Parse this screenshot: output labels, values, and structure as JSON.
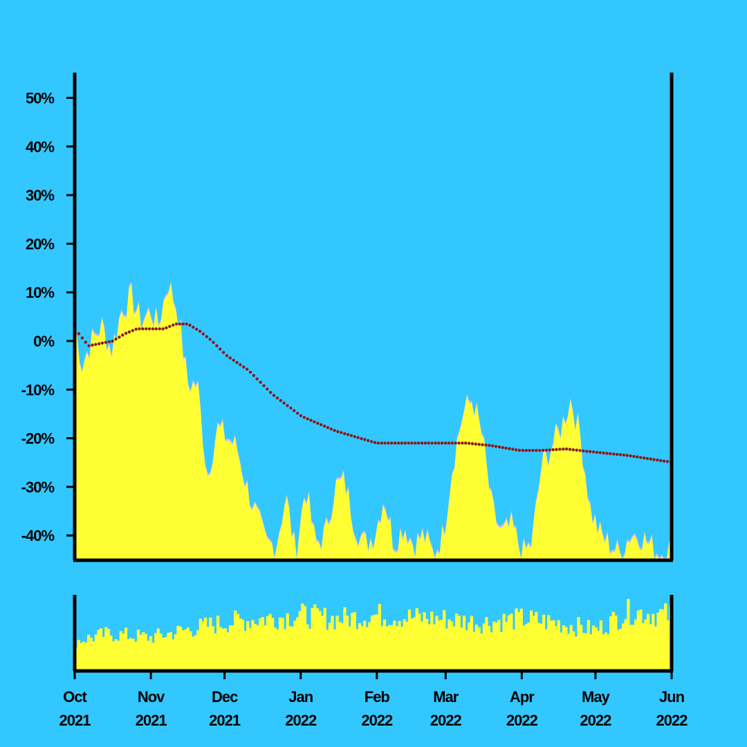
{
  "colors": {
    "background": "#33c7ff",
    "area_fill": "#ffff33",
    "area_edge": "#d8b8f0",
    "trend_dot": "#8b1a1a",
    "axis": "#000000"
  },
  "chart_data": [
    {
      "type": "area",
      "title": "",
      "xlabel": "",
      "ylabel": "",
      "x_range": [
        "2021-10-01",
        "2022-06-01"
      ],
      "ylim": [
        -45,
        55
      ],
      "y_ticks": [
        50,
        40,
        30,
        20,
        10,
        0,
        -10,
        -20,
        -30,
        -40
      ],
      "y_tick_labels": [
        "50%",
        "40%",
        "30%",
        "20%",
        "10%",
        "0%",
        "-10%",
        "-20%",
        "-30%",
        "-40%"
      ],
      "grid": false,
      "series": [
        {
          "style": "filled-area",
          "x": [
            "2021-10-01",
            "2021-10-04",
            "2021-10-08",
            "2021-10-12",
            "2021-10-16",
            "2021-10-20",
            "2021-10-24",
            "2021-10-28",
            "2021-11-01",
            "2021-11-04",
            "2021-11-08",
            "2021-11-12",
            "2021-11-16",
            "2021-11-20",
            "2021-11-24",
            "2021-11-28",
            "2021-12-02",
            "2021-12-06",
            "2021-12-10",
            "2021-12-14",
            "2021-12-18",
            "2021-12-22",
            "2021-12-26",
            "2021-12-30",
            "2022-01-03",
            "2022-01-07",
            "2022-01-11",
            "2022-01-15",
            "2022-01-19",
            "2022-01-23",
            "2022-01-27",
            "2022-01-31",
            "2022-02-04",
            "2022-02-08",
            "2022-02-12",
            "2022-02-16",
            "2022-02-20",
            "2022-02-24",
            "2022-02-28",
            "2022-03-04",
            "2022-03-08",
            "2022-03-12",
            "2022-03-16",
            "2022-03-20",
            "2022-03-24",
            "2022-03-28",
            "2022-04-01",
            "2022-04-05",
            "2022-04-09",
            "2022-04-13",
            "2022-04-17",
            "2022-04-21",
            "2022-04-25",
            "2022-04-29",
            "2022-05-03",
            "2022-05-07",
            "2022-05-11",
            "2022-05-15",
            "2022-05-19",
            "2022-05-23",
            "2022-05-27",
            "2022-05-31"
          ],
          "values": [
            3,
            -5,
            0,
            3,
            -2,
            6,
            9,
            4,
            6,
            3,
            12,
            6,
            -9,
            -9,
            -28,
            -18,
            -20,
            -22,
            -30,
            -36,
            -42,
            -42,
            -32,
            -44,
            -30,
            -42,
            -40,
            -30,
            -29,
            -38,
            -42,
            -40,
            -32,
            -42,
            -38,
            -42,
            -40,
            -44,
            -40,
            -25,
            -15,
            -12,
            -20,
            -35,
            -40,
            -38,
            -44,
            -42,
            -26,
            -22,
            -18,
            -12,
            -20,
            -35,
            -40,
            -42,
            -44,
            -40,
            -40,
            -42,
            -44,
            -43
          ]
        },
        {
          "style": "dotted-trend",
          "x": [
            "2021-10-01",
            "2021-10-05",
            "2021-10-10",
            "2021-10-15",
            "2021-10-20",
            "2021-10-25",
            "2021-10-30",
            "2021-11-05",
            "2021-11-10",
            "2021-11-15",
            "2021-11-20",
            "2021-11-25",
            "2021-12-01",
            "2021-12-10",
            "2021-12-20",
            "2022-01-01",
            "2022-01-15",
            "2022-02-01",
            "2022-02-15",
            "2022-03-01",
            "2022-03-10",
            "2022-03-20",
            "2022-04-01",
            "2022-04-10",
            "2022-04-20",
            "2022-05-01",
            "2022-05-15",
            "2022-06-01"
          ],
          "values": [
            1.5,
            -1,
            -0.5,
            0,
            1.5,
            2.5,
            2.5,
            2.5,
            3.5,
            3.5,
            2,
            0,
            -3,
            -6,
            -11,
            -15.5,
            -18.5,
            -21,
            -21,
            -21,
            -21,
            -21.5,
            -22.5,
            -22.5,
            -22.2,
            -22.8,
            -23.5,
            -24.8
          ]
        }
      ]
    },
    {
      "type": "bar",
      "title": "",
      "xlabel": "",
      "ylabel": "",
      "x_range": [
        "2021-10-01",
        "2022-06-01"
      ],
      "ylim": [
        0,
        1
      ],
      "x_tick_labels": [
        [
          "Oct",
          "2021"
        ],
        [
          "Nov",
          "2021"
        ],
        [
          "Dec",
          "2021"
        ],
        [
          "Jan",
          "2022"
        ],
        [
          "Feb",
          "2022"
        ],
        [
          "Mar",
          "2022"
        ],
        [
          "Apr",
          "2022"
        ],
        [
          "May",
          "2022"
        ],
        [
          "Jun",
          "2022"
        ]
      ],
      "x_ticks": [
        "2021-10-01",
        "2021-11-01",
        "2021-12-01",
        "2022-01-01",
        "2022-02-01",
        "2022-03-01",
        "2022-04-01",
        "2022-05-01",
        "2022-06-01"
      ],
      "grid": false,
      "series": [
        {
          "style": "volume-bars",
          "x": [
            "2021-10-01",
            "2021-10-15",
            "2021-11-01",
            "2021-11-15",
            "2021-12-01",
            "2021-12-15",
            "2022-01-01",
            "2022-01-15",
            "2022-02-01",
            "2022-02-15",
            "2022-03-01",
            "2022-03-15",
            "2022-04-01",
            "2022-04-15",
            "2022-05-01",
            "2022-05-15",
            "2022-05-31"
          ],
          "values": [
            0.4,
            0.5,
            0.45,
            0.55,
            0.65,
            0.7,
            0.75,
            0.7,
            0.75,
            0.72,
            0.7,
            0.65,
            0.7,
            0.65,
            0.55,
            0.8,
            0.75
          ]
        }
      ]
    }
  ]
}
